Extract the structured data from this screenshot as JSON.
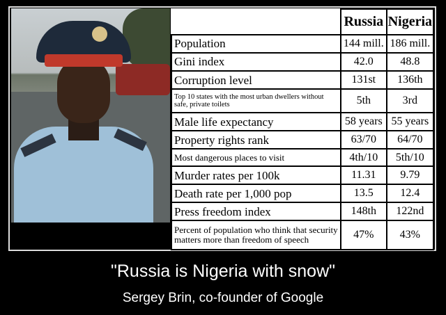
{
  "table": {
    "headers": [
      "",
      "Russia",
      "Nigeria"
    ],
    "rows": [
      {
        "label": "Population",
        "russia": "144 mill.",
        "nigeria": "186 mill."
      },
      {
        "label": "Gini index",
        "russia": "42.0",
        "nigeria": "48.8"
      },
      {
        "label": "Corruption level",
        "russia": "131st",
        "nigeria": "136th"
      },
      {
        "label": "Top 10 states with the most urban dwellers without safe, private toilets",
        "russia": "5th",
        "nigeria": "3rd"
      },
      {
        "label": "Male life expectancy",
        "russia": "58 years",
        "nigeria": "55 years"
      },
      {
        "label": "Property rights rank",
        "russia": "63/70",
        "nigeria": "64/70"
      },
      {
        "label": "Most dangerous places to visit",
        "russia": "4th/10",
        "nigeria": "5th/10"
      },
      {
        "label": "Murder rates per 100k",
        "russia": "11.31",
        "nigeria": "9.79"
      },
      {
        "label": "Death rate per 1,000 pop",
        "russia": "13.5",
        "nigeria": "12.4"
      },
      {
        "label": "Press freedom index",
        "russia": "148th",
        "nigeria": "122nd"
      },
      {
        "label": "Percent of population who think that security matters more than freedom of speech",
        "russia": "47%",
        "nigeria": "43%"
      }
    ]
  },
  "caption": {
    "quote": "\"Russia is Nigeria with snow\"",
    "attribution": "Sergey Brin, co-founder of Google"
  }
}
